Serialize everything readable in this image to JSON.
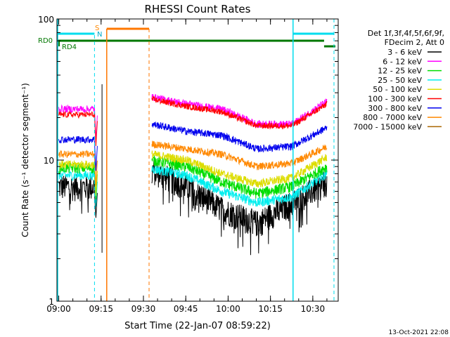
{
  "chart_data": {
    "type": "line",
    "title": "RHESSI Count Rates",
    "xlabel": "Start Time (22-Jan-07 08:59:22)",
    "ylabel": "Count Rate (s⁻¹ detector segment⁻¹)",
    "y_scale": "log",
    "xlim": [
      "08:59:22",
      "10:39:00"
    ],
    "ylim": [
      1,
      100
    ],
    "x_tick_labels": [
      "09:00",
      "09:15",
      "09:30",
      "09:45",
      "10:00",
      "10:15",
      "10:30"
    ],
    "y_tick_labels": [
      "1",
      "10",
      "100"
    ],
    "legend_header": [
      "Det 1f,3f,4f,5f,6f,9f,",
      "FDecim 2, Att 0"
    ],
    "timestamp": "13-Oct-2021 22:08",
    "data_gap": [
      "09:17:00",
      "09:32:00"
    ],
    "series": [
      {
        "name": "3 - 6 keV",
        "color": "#000000",
        "level_before": 6.5,
        "level_after": [
          8.5,
          6.5,
          4.5,
          3.6,
          5.0,
          7.0
        ]
      },
      {
        "name": "6 - 12 keV",
        "color": "#ff00ff",
        "level_before": 23,
        "level_after": [
          28,
          25,
          23,
          18,
          18,
          26
        ]
      },
      {
        "name": "12 - 25 keV",
        "color": "#00dd00",
        "level_before": 8.8,
        "level_after": [
          10,
          9.0,
          7.0,
          5.8,
          6.5,
          9.0
        ]
      },
      {
        "name": "25 - 50 keV",
        "color": "#00eeee",
        "level_before": 7.8,
        "level_after": [
          8.7,
          7.8,
          6.0,
          5.0,
          5.5,
          8.0
        ]
      },
      {
        "name": "50 - 100 keV",
        "color": "#dddd00",
        "level_before": 9.3,
        "level_after": [
          11,
          10,
          8,
          6.8,
          7.5,
          10.5
        ]
      },
      {
        "name": "100 - 300 keV",
        "color": "#ff0000",
        "level_before": 21,
        "level_after": [
          27,
          24,
          22,
          17.5,
          17.5,
          25
        ]
      },
      {
        "name": "300 - 800 keV",
        "color": "#0000ee",
        "level_before": 14,
        "level_after": [
          18,
          16,
          15,
          12,
          12.5,
          17
        ]
      },
      {
        "name": "800 - 7000 keV",
        "color": "#ff8800",
        "level_before": 11,
        "level_after": [
          13,
          12,
          11,
          9,
          9.5,
          12.5
        ]
      },
      {
        "name": "7000 - 15000 keV",
        "color": "#aa6600",
        "level_before": null,
        "level_after": null
      }
    ],
    "annotations": {
      "rd0_label": "RD0",
      "rd4_label": "RD4",
      "s_label": "S",
      "n_label": "N"
    },
    "grid": false,
    "legend_placement": "right"
  }
}
